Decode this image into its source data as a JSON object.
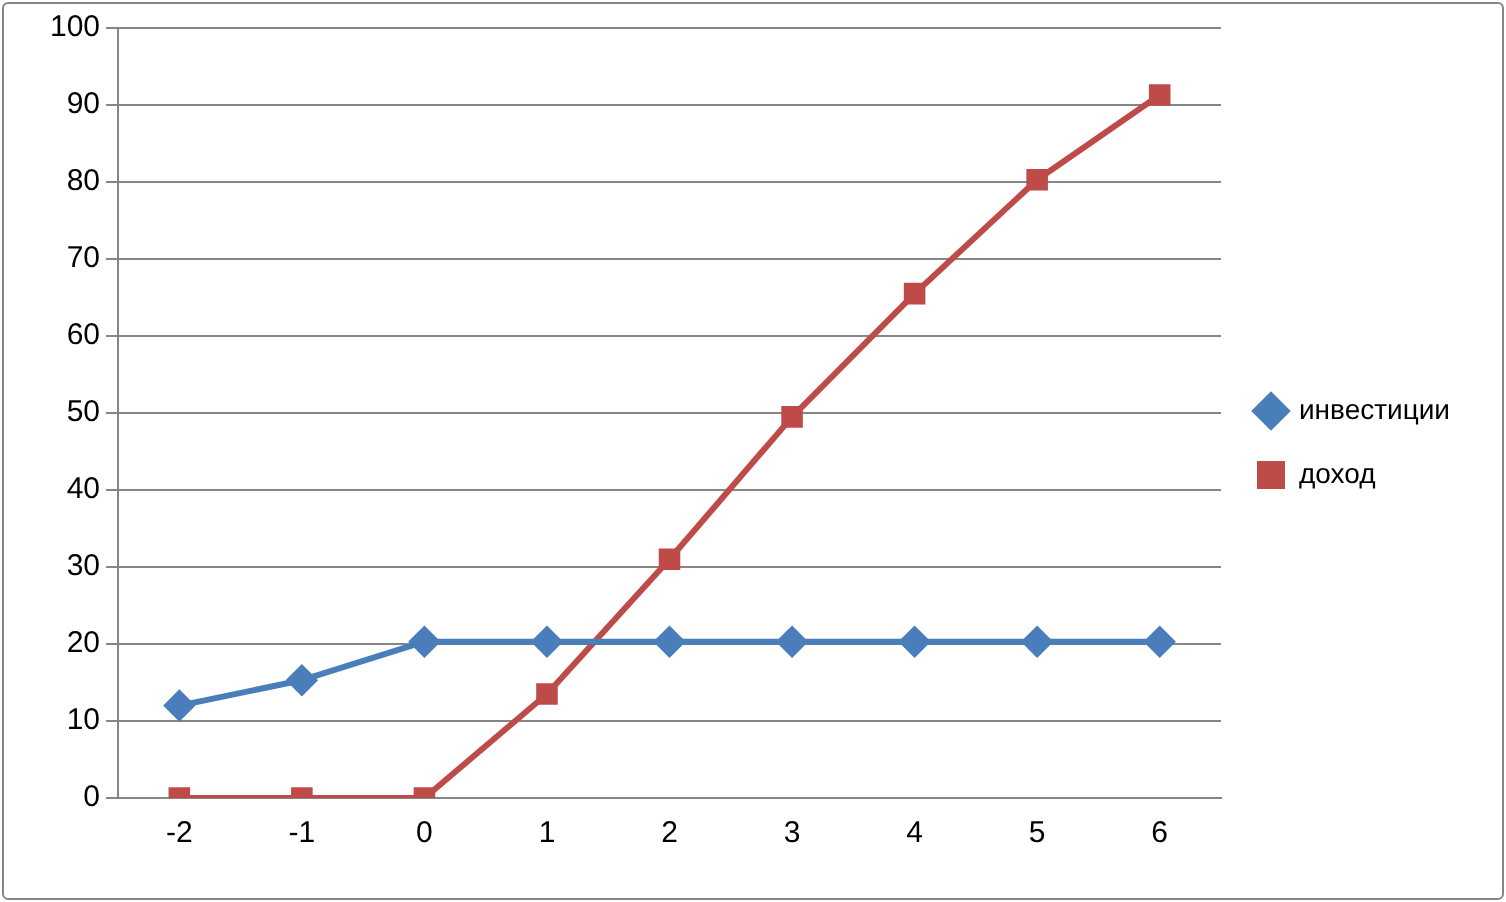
{
  "chart_data": {
    "type": "line",
    "categories": [
      "-2",
      "-1",
      "0",
      "1",
      "2",
      "3",
      "4",
      "5",
      "6"
    ],
    "series": [
      {
        "name": "инвестиции",
        "color": "#4a7ebb",
        "marker": "diamond",
        "values": [
          12,
          15.3,
          20.3,
          20.3,
          20.3,
          20.3,
          20.3,
          20.3,
          20.3
        ]
      },
      {
        "name": "доход",
        "color": "#be4b48",
        "marker": "square",
        "values": [
          0,
          0,
          0,
          13.5,
          31,
          49.5,
          65.5,
          80.3,
          91.3
        ]
      }
    ],
    "ylim": [
      0,
      100
    ],
    "yticks": [
      0,
      10,
      20,
      30,
      40,
      50,
      60,
      70,
      80,
      90,
      100
    ],
    "grid": "y",
    "legend": "right",
    "line_style": "solid"
  }
}
